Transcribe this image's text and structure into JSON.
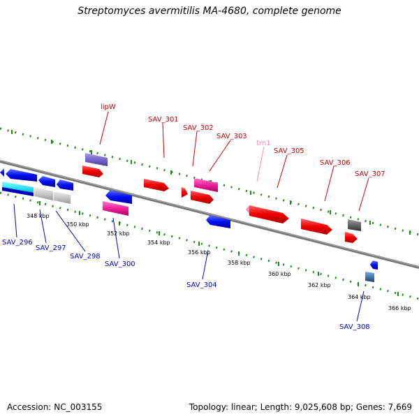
{
  "title": "Streptomyces avermitilis MA-4680, complete genome",
  "footer": {
    "accession": "Accession: NC_003155",
    "summary": "Topology: linear; Length: 9,025,608 bp; Genes: 7,669"
  },
  "colors": {
    "forward_label": "#cc0000",
    "reverse_label": "#0000cc",
    "trna_label": "#ff88bb",
    "dots": "#228822"
  },
  "ticks": [
    "348 kbp",
    "350 kbp",
    "352 kbp",
    "354 kbp",
    "356 kbp",
    "358 kbp",
    "360 kbp",
    "362 kbp",
    "364 kbp",
    "366 kbp"
  ],
  "forward_labels": [
    "lipW",
    "SAV_301",
    "SAV_302",
    "SAV_303",
    "trn1",
    "SAV_305",
    "SAV_306",
    "SAV_307"
  ],
  "reverse_labels": [
    "SAV_296",
    "SAV_297",
    "SAV_298",
    "SAV_300",
    "SAV_304",
    "SAV_308"
  ]
}
